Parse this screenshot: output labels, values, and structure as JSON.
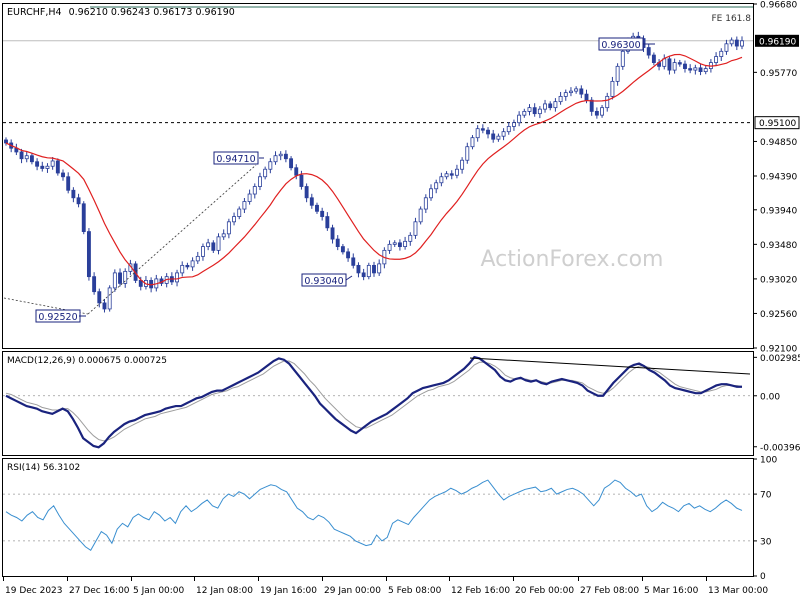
{
  "chart_data": [
    {
      "type": "candlestick",
      "symbol_label": "EURCHF,H4",
      "ohlc_label": "0.96210 0.96243 0.96173 0.96190",
      "y_ticks": [
        "0.96680",
        "0.96190",
        "0.95770",
        "0.95100",
        "0.94850",
        "0.94390",
        "0.93940",
        "0.93480",
        "0.93020",
        "0.92560",
        "0.92100"
      ],
      "ylim": [
        0.921,
        0.9668
      ],
      "current_price": "0.96190",
      "horizontal_line_price": "0.95100",
      "fe_label": "FE 161.8",
      "fe_price": 0.9664,
      "annotations": [
        "0.94710",
        "0.92520",
        "0.93040",
        "0.96300"
      ],
      "watermark": "ActionForex.com",
      "ma_color": "#e02020",
      "candle_color": "#2a3f9a",
      "closes": [
        0.9483,
        0.9476,
        0.9471,
        0.9462,
        0.9466,
        0.9458,
        0.9452,
        0.9449,
        0.9452,
        0.9459,
        0.9443,
        0.9438,
        0.942,
        0.941,
        0.9402,
        0.9365,
        0.9305,
        0.9285,
        0.927,
        0.9262,
        0.929,
        0.931,
        0.9296,
        0.9312,
        0.9322,
        0.93,
        0.9292,
        0.93,
        0.929,
        0.9302,
        0.9296,
        0.9305,
        0.9298,
        0.931,
        0.932,
        0.9318,
        0.9326,
        0.9332,
        0.9345,
        0.935,
        0.934,
        0.9358,
        0.9362,
        0.9378,
        0.9385,
        0.9395,
        0.9405,
        0.9415,
        0.9425,
        0.9438,
        0.9448,
        0.9458,
        0.9466,
        0.9468,
        0.9462,
        0.945,
        0.944,
        0.9425,
        0.941,
        0.94,
        0.9392,
        0.9385,
        0.937,
        0.9355,
        0.9345,
        0.9338,
        0.933,
        0.932,
        0.931,
        0.9305,
        0.932,
        0.931,
        0.9322,
        0.934,
        0.9348,
        0.935,
        0.9345,
        0.9352,
        0.936,
        0.9378,
        0.9395,
        0.941,
        0.9422,
        0.943,
        0.9438,
        0.9442,
        0.944,
        0.9448,
        0.946,
        0.9478,
        0.949,
        0.9502,
        0.95,
        0.9495,
        0.9488,
        0.9492,
        0.9498,
        0.9505,
        0.951,
        0.952,
        0.9525,
        0.953,
        0.9522,
        0.9528,
        0.9535,
        0.953,
        0.9538,
        0.9545,
        0.955,
        0.9552,
        0.9555,
        0.9548,
        0.954,
        0.9525,
        0.952,
        0.953,
        0.9545,
        0.9565,
        0.9585,
        0.9605,
        0.962,
        0.9625,
        0.9622,
        0.961,
        0.96,
        0.959,
        0.9585,
        0.9595,
        0.958,
        0.959,
        0.9588,
        0.9582,
        0.958,
        0.9583,
        0.9578,
        0.9582,
        0.959,
        0.9598,
        0.9605,
        0.9615,
        0.962,
        0.9612,
        0.9619
      ],
      "macd_label": "MACD(12,26,9) 0.000675 0.000725",
      "macd_ticks": [
        "0.002985",
        "0.00",
        "-0.00396"
      ],
      "macd_ylim": [
        -0.0046,
        0.0034
      ],
      "macd_values": [
        0.0,
        -0.0002,
        -0.0004,
        -0.0006,
        -0.0008,
        -0.0009,
        -0.001,
        -0.0012,
        -0.0013,
        -0.0014,
        -0.0012,
        -0.001,
        -0.0012,
        -0.0018,
        -0.0025,
        -0.0033,
        -0.0036,
        -0.0039,
        -0.004,
        -0.0037,
        -0.0032,
        -0.0028,
        -0.0025,
        -0.0022,
        -0.002,
        -0.0019,
        -0.0017,
        -0.0015,
        -0.0014,
        -0.0013,
        -0.0012,
        -0.001,
        -0.0009,
        -0.0008,
        -0.0008,
        -0.0006,
        -0.0004,
        -0.0002,
        -0.0001,
        0.0001,
        0.0003,
        0.0004,
        0.0004,
        0.0006,
        0.0008,
        0.001,
        0.0012,
        0.0014,
        0.0016,
        0.0018,
        0.0021,
        0.0024,
        0.0027,
        0.0029,
        0.0028,
        0.0025,
        0.002,
        0.0015,
        0.001,
        0.0005,
        0.0,
        -0.0006,
        -0.001,
        -0.0014,
        -0.0018,
        -0.0021,
        -0.0024,
        -0.0027,
        -0.0029,
        -0.0026,
        -0.0023,
        -0.002,
        -0.0018,
        -0.0016,
        -0.0014,
        -0.0011,
        -0.0008,
        -0.0005,
        -0.0002,
        0.0002,
        0.0004,
        0.0006,
        0.0007,
        0.0008,
        0.0009,
        0.001,
        0.0012,
        0.0015,
        0.0018,
        0.0021,
        0.0025,
        0.003,
        0.0029,
        0.0026,
        0.0023,
        0.002,
        0.0015,
        0.0012,
        0.0011,
        0.0013,
        0.0014,
        0.0012,
        0.0011,
        0.0012,
        0.001,
        0.0009,
        0.0011,
        0.0012,
        0.0013,
        0.0012,
        0.0011,
        0.001,
        0.0008,
        0.0004,
        0.0002,
        0.0,
        0.0,
        0.0005,
        0.001,
        0.0014,
        0.0018,
        0.0022,
        0.0024,
        0.0025,
        0.0023,
        0.002,
        0.0018,
        0.0015,
        0.0012,
        0.0008,
        0.0006,
        0.0005,
        0.0004,
        0.0003,
        0.0002,
        0.0002,
        0.0004,
        0.0006,
        0.0008,
        0.0009,
        0.0009,
        0.0008,
        0.0007,
        0.0007
      ],
      "signal_values": [
        0.0002,
        0.0001,
        -0.0001,
        -0.0003,
        -0.0005,
        -0.0006,
        -0.0007,
        -0.0009,
        -0.001,
        -0.0011,
        -0.0011,
        -0.001,
        -0.001,
        -0.0013,
        -0.0017,
        -0.0022,
        -0.0027,
        -0.0031,
        -0.0034,
        -0.0035,
        -0.0034,
        -0.0032,
        -0.0029,
        -0.0026,
        -0.0024,
        -0.0022,
        -0.002,
        -0.0018,
        -0.0017,
        -0.0016,
        -0.0014,
        -0.0013,
        -0.0012,
        -0.0011,
        -0.001,
        -0.0009,
        -0.0007,
        -0.0005,
        -0.0003,
        -0.0001,
        0.0001,
        0.0002,
        0.0003,
        0.0004,
        0.0006,
        0.0007,
        0.0009,
        0.0011,
        0.0013,
        0.0015,
        0.0017,
        0.002,
        0.0023,
        0.0025,
        0.0027,
        0.0027,
        0.0025,
        0.0021,
        0.0017,
        0.0012,
        0.0008,
        0.0003,
        -0.0002,
        -0.0006,
        -0.001,
        -0.0014,
        -0.0018,
        -0.0021,
        -0.0024,
        -0.0025,
        -0.0025,
        -0.0023,
        -0.0021,
        -0.0019,
        -0.0017,
        -0.0015,
        -0.0012,
        -0.0009,
        -0.0006,
        -0.0003,
        0.0,
        0.0002,
        0.0004,
        0.0005,
        0.0007,
        0.0008,
        0.0009,
        0.0011,
        0.0014,
        0.0017,
        0.002,
        0.0024,
        0.0026,
        0.0026,
        0.0025,
        0.0023,
        0.002,
        0.0016,
        0.0014,
        0.0013,
        0.0013,
        0.0013,
        0.0012,
        0.0012,
        0.0011,
        0.001,
        0.001,
        0.0011,
        0.0012,
        0.0012,
        0.0012,
        0.0011,
        0.001,
        0.0007,
        0.0005,
        0.0003,
        0.0002,
        0.0003,
        0.0006,
        0.001,
        0.0014,
        0.0018,
        0.0021,
        0.0023,
        0.0023,
        0.0022,
        0.002,
        0.0018,
        0.0015,
        0.0012,
        0.0009,
        0.0007,
        0.0006,
        0.0005,
        0.0004,
        0.0003,
        0.0003,
        0.0004,
        0.0005,
        0.0007,
        0.0008,
        0.0008,
        0.0008,
        0.0007
      ],
      "rsi_label": "RSI(14) 56.3102",
      "rsi_ticks": [
        "100",
        "70",
        "30",
        "0"
      ],
      "rsi_ylim": [
        0,
        100
      ],
      "rsi_values": [
        55,
        52,
        50,
        47,
        52,
        55,
        50,
        48,
        56,
        60,
        52,
        45,
        40,
        35,
        30,
        25,
        22,
        30,
        38,
        35,
        28,
        40,
        45,
        42,
        50,
        53,
        50,
        48,
        55,
        52,
        47,
        50,
        45,
        55,
        60,
        55,
        58,
        62,
        65,
        60,
        58,
        66,
        70,
        68,
        72,
        70,
        66,
        70,
        74,
        76,
        78,
        77,
        74,
        72,
        65,
        58,
        55,
        50,
        48,
        52,
        50,
        46,
        40,
        38,
        36,
        34,
        30,
        28,
        26,
        27,
        35,
        30,
        33,
        45,
        48,
        46,
        44,
        50,
        55,
        60,
        65,
        68,
        70,
        72,
        75,
        73,
        70,
        72,
        75,
        77,
        80,
        82,
        76,
        70,
        65,
        68,
        70,
        72,
        74,
        75,
        76,
        72,
        73,
        75,
        70,
        72,
        74,
        75,
        73,
        70,
        65,
        60,
        65,
        75,
        78,
        82,
        80,
        75,
        72,
        68,
        70,
        60,
        55,
        58,
        63,
        60,
        58,
        55,
        60,
        62,
        58,
        60,
        57,
        55,
        58,
        62,
        65,
        62,
        58,
        56
      ]
    }
  ],
  "time_axis": [
    "19 Dec 2023",
    "27 Dec 16:00",
    "5 Jan 00:00",
    "12 Jan 08:00",
    "19 Jan 16:00",
    "29 Jan 00:00",
    "5 Feb 08:00",
    "12 Feb 16:00",
    "20 Feb 00:00",
    "27 Feb 08:00",
    "5 Mar 16:00",
    "13 Mar 00:00"
  ],
  "colors": {
    "candles": "#2a3f9a",
    "moving_average": "#e02020",
    "macd_line": "#1a237e",
    "signal_line": "#9e9e9e",
    "rsi_line": "#3a8fd0",
    "price_label_bg": "#000000"
  }
}
